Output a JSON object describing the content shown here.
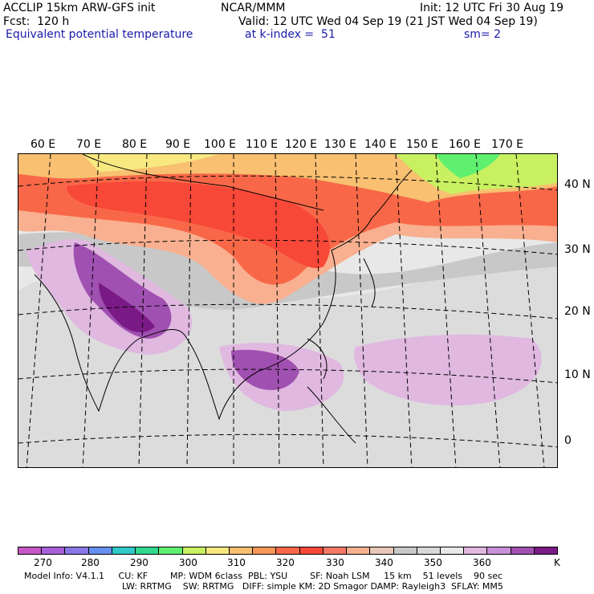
{
  "header": {
    "title": "ACCLIP 15km ARW-GFS init",
    "center": "NCAR/MMM",
    "init": "Init: 12 UTC Fri 30 Aug 19",
    "fcst": "Fcst:  120 h",
    "valid": "Valid: 12 UTC Wed 04 Sep 19 (21 JST Wed 04 Sep 19)",
    "field": "Equivalent potential temperature",
    "level": "at k-index =  51",
    "smoothing": "sm= 2"
  },
  "map": {
    "lon_labels": [
      "60 E",
      "70 E",
      "80 E",
      "90 E",
      "100 E",
      "110 E",
      "120 E",
      "130 E",
      "140 E",
      "150 E",
      "160 E",
      "170 E"
    ],
    "lat_labels": [
      "40 N",
      "30 N",
      "20 N",
      "10 N",
      "0"
    ]
  },
  "legend": {
    "colors": [
      "#c858c8",
      "#a860d8",
      "#8878e8",
      "#6890f0",
      "#30c8c8",
      "#30d890",
      "#60f070",
      "#c8f060",
      "#f8e880",
      "#f8c070",
      "#f89858",
      "#f86848",
      "#f84838",
      "#f87868",
      "#f8b090",
      "#e8c8b8",
      "#c8c8c8",
      "#d8d8d8",
      "#e8e8e8",
      "#e0b8e0",
      "#c890d8",
      "#a050b0",
      "#7a1a86"
    ],
    "ticks": [
      "270",
      "280",
      "290",
      "300",
      "310",
      "320",
      "330",
      "340",
      "350",
      "360"
    ],
    "unit": "K"
  },
  "footer": {
    "line1": "Model Info: V4.1.1     CU: KF        MP: WDM 6class  PBL: YSU        SF: Noah LSM     15 km    51 levels    90 sec",
    "line2": "LW: RRTMG    SW: RRTMG   DIFF: simple KM: 2D Smagor DAMP: Rayleigh3  SFLAY: MM5"
  }
}
